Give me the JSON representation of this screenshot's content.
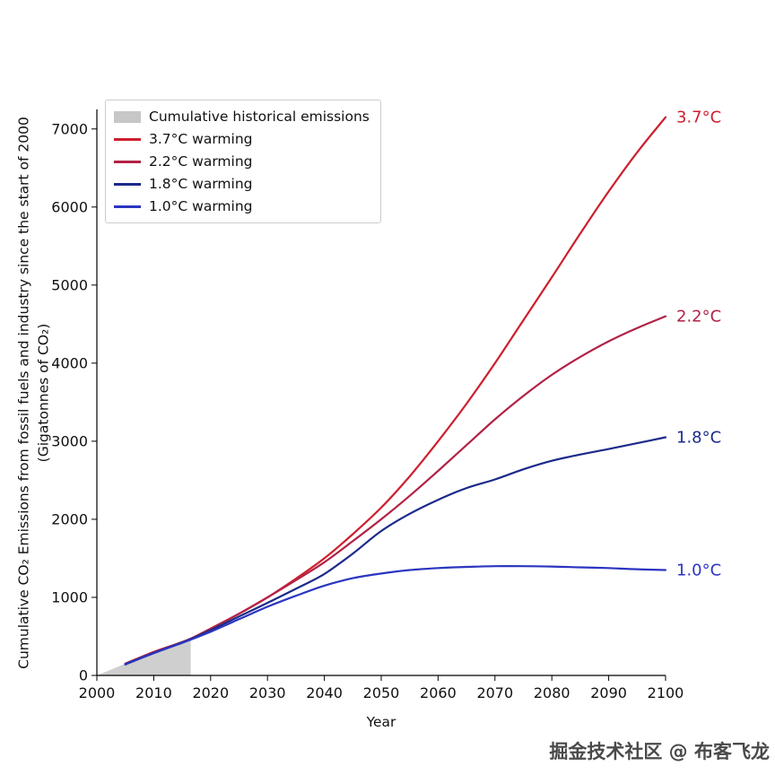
{
  "chart": {
    "xlabel": "Year",
    "ylabel_line1": "Cumulative CO₂ Emissions from fossil fuels and industry since the start of 2000",
    "ylabel_line2": "(Gigatonnes of CO₂)",
    "xticks": [
      2000,
      2010,
      2020,
      2030,
      2040,
      2050,
      2060,
      2070,
      2080,
      2090,
      2100
    ],
    "yticks": [
      0,
      1000,
      2000,
      3000,
      4000,
      5000,
      6000,
      7000
    ]
  },
  "legend": {
    "items": [
      {
        "label": "Cumulative historical emissions",
        "type": "patch",
        "color": "#c7c7c7"
      },
      {
        "label": "3.7°C warming",
        "type": "line",
        "color": "#cd1f2d"
      },
      {
        "label": "2.2°C warming",
        "type": "line",
        "color": "#b22246"
      },
      {
        "label": "1.8°C warming",
        "type": "line",
        "color": "#1b2a8a"
      },
      {
        "label": "1.0°C warming",
        "type": "line",
        "color": "#2b35c0"
      }
    ]
  },
  "watermark": "掘金技术社区 @ 布客飞龙",
  "chart_data": {
    "type": "line",
    "title": "",
    "xlabel": "Year",
    "ylabel": "Cumulative CO₂ Emissions from fossil fuels and industry since the start of 2000 (Gigatonnes of CO₂)",
    "xlim": [
      2000,
      2100
    ],
    "ylim": [
      0,
      7250
    ],
    "grid": false,
    "legend_position": "upper left",
    "historical_area": {
      "label": "Cumulative historical emissions",
      "color": "#c7c7c7",
      "x": [
        2000,
        2005,
        2010,
        2016.5
      ],
      "y": [
        0,
        150,
        300,
        460
      ]
    },
    "x": [
      2005,
      2010,
      2016,
      2020,
      2025,
      2030,
      2035,
      2040,
      2045,
      2050,
      2055,
      2060,
      2065,
      2070,
      2075,
      2080,
      2085,
      2090,
      2095,
      2100
    ],
    "series": [
      {
        "name": "3.7°C warming",
        "end_label": "3.7°C",
        "color": "#cd1f2d",
        "values": [
          150,
          300,
          455,
          600,
          790,
          1000,
          1240,
          1500,
          1810,
          2150,
          2550,
          3000,
          3480,
          4000,
          4550,
          5100,
          5660,
          6200,
          6700,
          7150
        ]
      },
      {
        "name": "2.2°C warming",
        "end_label": "2.2°C",
        "color": "#b22246",
        "values": [
          150,
          300,
          455,
          600,
          790,
          1000,
          1220,
          1450,
          1720,
          2000,
          2300,
          2620,
          2950,
          3280,
          3580,
          3850,
          4080,
          4280,
          4450,
          4600
        ]
      },
      {
        "name": "1.8°C warming",
        "end_label": "1.8°C",
        "color": "#1b2a8a",
        "values": [
          145,
          290,
          450,
          580,
          755,
          930,
          1110,
          1300,
          1560,
          1850,
          2070,
          2250,
          2400,
          2510,
          2640,
          2750,
          2830,
          2900,
          2975,
          3050
        ]
      },
      {
        "name": "1.0°C warming",
        "end_label": "1.0°C",
        "color": "#2b35c0",
        "values": [
          140,
          285,
          445,
          560,
          720,
          880,
          1020,
          1150,
          1245,
          1305,
          1350,
          1375,
          1390,
          1400,
          1400,
          1395,
          1385,
          1375,
          1360,
          1350
        ]
      }
    ]
  }
}
